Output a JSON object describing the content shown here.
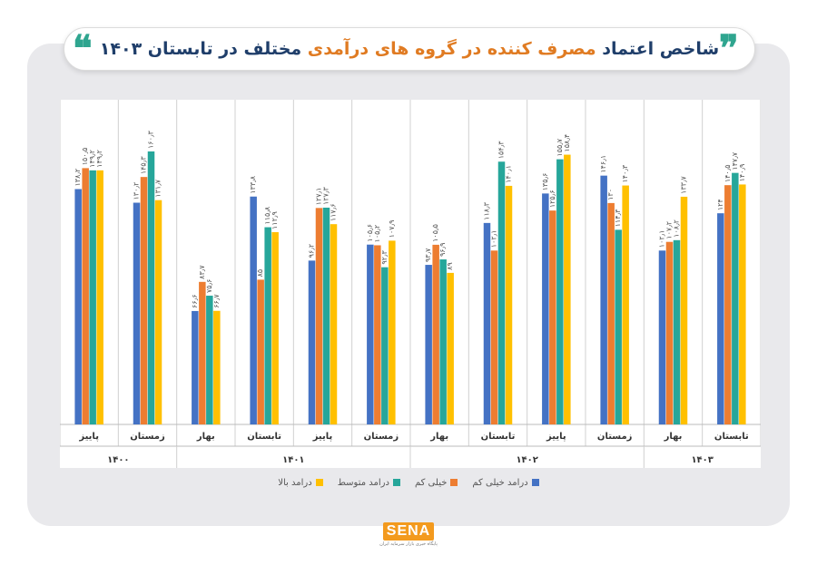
{
  "header": {
    "title_part1": "شاخص اعتماد",
    "title_highlight": "مصرف کننده در گروه های درآمدی",
    "title_part2": "مختلف در تابستان ۱۴۰۳",
    "quote_open": "❞",
    "quote_close": "❝"
  },
  "logo": {
    "text": "SENA",
    "subtitle": "پایگاه خبری بازار سرمایه ایران"
  },
  "colors": {
    "very_low": "#4472c4",
    "low": "#ed7d31",
    "medium": "#26a69a",
    "high": "#ffc000"
  },
  "chart_data": {
    "type": "bar",
    "value_label_format": "persian_digits",
    "categories": [
      "پاییز",
      "زمستان",
      "بهار",
      "تابستان",
      "پاییز",
      "زمستان",
      "بهار",
      "تابستان",
      "پاییز",
      "زمستان",
      "بهار",
      "تابستان"
    ],
    "groups": [
      {
        "label": "۱۴۰۰",
        "categories": [
          "پاییز",
          "زمستان"
        ]
      },
      {
        "label": "۱۴۰۱",
        "categories": [
          "بهار",
          "تابستان",
          "پاییز",
          "زمستان"
        ]
      },
      {
        "label": "۱۴۰۲",
        "categories": [
          "بهار",
          "تابستان",
          "پاییز",
          "زمستان"
        ]
      },
      {
        "label": "۱۴۰۳",
        "categories": [
          "بهار",
          "تابستان"
        ]
      }
    ],
    "series": [
      {
        "name": "درامد خیلی کم",
        "color": "#4472c4",
        "values": [
          138.2,
          130.2,
          66.6,
          133.8,
          96.2,
          105.6,
          93.7,
          118.3,
          135.6,
          146.1,
          102.1,
          124
        ]
      },
      {
        "name": "خیلی کم",
        "color": "#ed7d31",
        "values": [
          150.5,
          145.3,
          83.7,
          85,
          127.1,
          105.2,
          105.5,
          102.1,
          125.6,
          130,
          107.2,
          140.5
        ]
      },
      {
        "name": "درامد متوسط",
        "color": "#26a69a",
        "values": [
          149.2,
          160.3,
          75.6,
          115.8,
          127.3,
          92.3,
          96.9,
          154.3,
          155.7,
          114.3,
          108.2,
          147.7
        ]
      },
      {
        "name": "درامد بالا",
        "color": "#ffc000",
        "values": [
          149.2,
          131.7,
          66.7,
          112.9,
          117.6,
          107.9,
          89,
          140.1,
          158.4,
          140.3,
          133.7,
          140.9
        ]
      }
    ],
    "ylim": [
      0,
      180
    ],
    "grid": false,
    "legend_position": "bottom"
  }
}
